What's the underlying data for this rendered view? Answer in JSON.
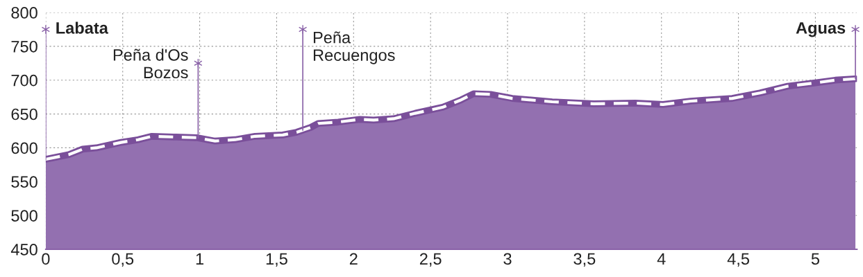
{
  "chart_data": {
    "type": "area",
    "x": [
      0,
      0.15,
      0.24,
      0.33,
      0.49,
      0.6,
      0.69,
      0.83,
      0.98,
      1.1,
      1.23,
      1.36,
      1.54,
      1.63,
      1.72,
      1.77,
      1.9,
      2.04,
      2.13,
      2.26,
      2.4,
      2.58,
      2.69,
      2.78,
      2.89,
      3.03,
      3.29,
      3.56,
      3.83,
      4.01,
      4.19,
      4.46,
      4.64,
      4.82,
      5.0,
      5.13,
      5.26
    ],
    "series": [
      {
        "color": "#9370b0",
        "values": [
          583,
          590,
          598,
          600,
          608,
          612,
          617,
          616,
          615,
          610,
          612,
          617,
          619,
          623,
          630,
          636,
          638,
          642,
          641,
          643,
          651,
          660,
          670,
          680,
          679,
          673,
          668,
          665,
          666,
          664,
          669,
          673,
          681,
          691,
          696,
          700,
          702
        ]
      }
    ],
    "xlim": [
      0,
      5.27
    ],
    "ylim": [
      450,
      800
    ],
    "xticks": [
      0,
      {
        "value": 0.5,
        "label": "0,5"
      },
      1,
      {
        "value": 1.5,
        "label": "1,5"
      },
      2,
      {
        "value": 2.5,
        "label": "2,5"
      },
      3,
      {
        "value": 3.5,
        "label": "3,5"
      },
      4,
      {
        "value": 4.5,
        "label": "4,5"
      },
      5
    ],
    "yticks": [
      450,
      500,
      550,
      600,
      650,
      700,
      750,
      800
    ],
    "grid": true,
    "line_style": "dashed",
    "annotations": [
      {
        "text": "Labata",
        "x": 0,
        "y": 775
      },
      {
        "text": "Peña d'Os\nBozos",
        "x": 0.99,
        "y": 725
      },
      {
        "text": "Peña\nRecuengos",
        "x": 1.67,
        "y": 775
      },
      {
        "text": "Aguas",
        "x": 5.26,
        "y": 775
      }
    ]
  }
}
